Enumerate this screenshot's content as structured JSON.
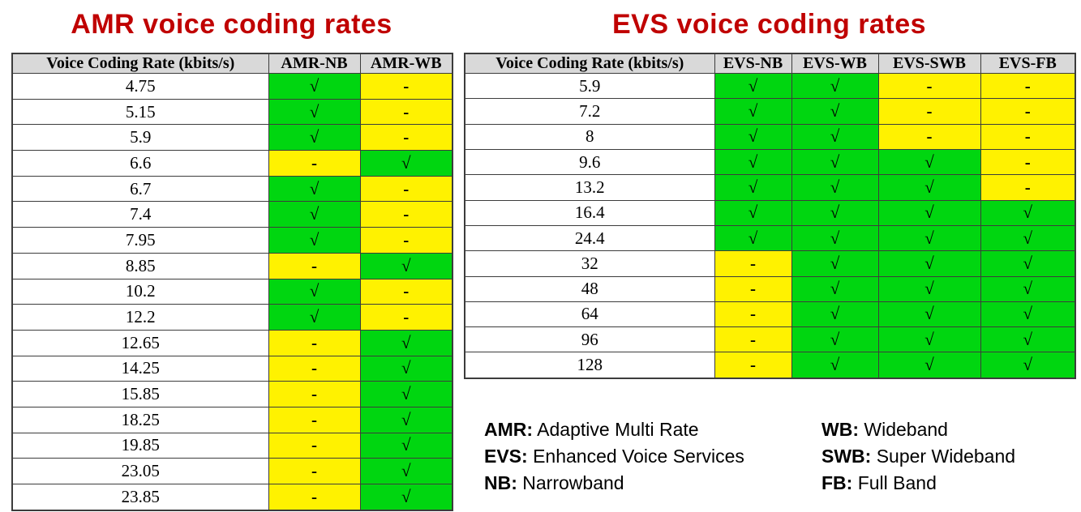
{
  "colors": {
    "supported_bg": "#00d610",
    "unsupported_bg": "#fff200",
    "header_bg": "#d9d9d9",
    "title_text": "#c00000",
    "border": "#3c3c3c"
  },
  "symbols": {
    "supported": "√",
    "unsupported": "-"
  },
  "cell_legend": {
    "√": "rate supported (green cell)",
    "-": "rate not supported (yellow cell)"
  },
  "chart_data": [
    {
      "type": "table",
      "title": "AMR voice coding rates",
      "columns": [
        "Voice Coding Rate (kbits/s)",
        "AMR-NB",
        "AMR-WB"
      ],
      "rows": [
        [
          "4.75",
          "√",
          "-"
        ],
        [
          "5.15",
          "√",
          "-"
        ],
        [
          "5.9",
          "√",
          "-"
        ],
        [
          "6.6",
          "-",
          "√"
        ],
        [
          "6.7",
          "√",
          "-"
        ],
        [
          "7.4",
          "√",
          "-"
        ],
        [
          "7.95",
          "√",
          "-"
        ],
        [
          "8.85",
          "-",
          "√"
        ],
        [
          "10.2",
          "√",
          "-"
        ],
        [
          "12.2",
          "√",
          "-"
        ],
        [
          "12.65",
          "-",
          "√"
        ],
        [
          "14.25",
          "-",
          "√"
        ],
        [
          "15.85",
          "-",
          "√"
        ],
        [
          "18.25",
          "-",
          "√"
        ],
        [
          "19.85",
          "-",
          "√"
        ],
        [
          "23.05",
          "-",
          "√"
        ],
        [
          "23.85",
          "-",
          "√"
        ]
      ]
    },
    {
      "type": "table",
      "title": "EVS voice coding rates",
      "columns": [
        "Voice Coding Rate (kbits/s)",
        "EVS-NB",
        "EVS-WB",
        "EVS-SWB",
        "EVS-FB"
      ],
      "rows": [
        [
          "5.9",
          "√",
          "√",
          "-",
          "-"
        ],
        [
          "7.2",
          "√",
          "√",
          "-",
          "-"
        ],
        [
          "8",
          "√",
          "√",
          "-",
          "-"
        ],
        [
          "9.6",
          "√",
          "√",
          "√",
          "-"
        ],
        [
          "13.2",
          "√",
          "√",
          "√",
          "-"
        ],
        [
          "16.4",
          "√",
          "√",
          "√",
          "√"
        ],
        [
          "24.4",
          "√",
          "√",
          "√",
          "√"
        ],
        [
          "32",
          "-",
          "√",
          "√",
          "√"
        ],
        [
          "48",
          "-",
          "√",
          "√",
          "√"
        ],
        [
          "64",
          "-",
          "√",
          "√",
          "√"
        ],
        [
          "96",
          "-",
          "√",
          "√",
          "√"
        ],
        [
          "128",
          "-",
          "√",
          "√",
          "√"
        ]
      ]
    }
  ],
  "legend": {
    "left": [
      {
        "abbr": "AMR:",
        "definition": "Adaptive Multi Rate"
      },
      {
        "abbr": "EVS:",
        "definition": "Enhanced Voice Services"
      },
      {
        "abbr": "NB:",
        "definition": "Narrowband"
      }
    ],
    "right": [
      {
        "abbr": "WB:",
        "definition": "Wideband"
      },
      {
        "abbr": "SWB:",
        "definition": "Super Wideband"
      },
      {
        "abbr": "FB:",
        "definition": "Full Band"
      }
    ]
  }
}
